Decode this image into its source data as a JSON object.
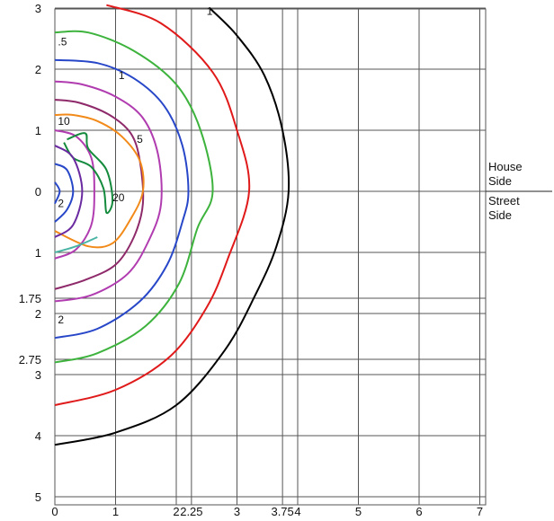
{
  "chart_data": {
    "type": "contour",
    "x_ticks": [
      {
        "v": 0,
        "label": "0"
      },
      {
        "v": 1,
        "label": "1"
      },
      {
        "v": 2,
        "label": "2"
      },
      {
        "v": 2.25,
        "label": "2.25"
      },
      {
        "v": 3,
        "label": "3"
      },
      {
        "v": 3.75,
        "label": "3.75"
      },
      {
        "v": 4,
        "label": "4"
      },
      {
        "v": 5,
        "label": "5"
      },
      {
        "v": 6,
        "label": "6"
      },
      {
        "v": 7,
        "label": "7"
      }
    ],
    "y_ticks": [
      {
        "v": 3,
        "label": "3"
      },
      {
        "v": 2,
        "label": "2"
      },
      {
        "v": 1,
        "label": "1"
      },
      {
        "v": 0,
        "label": "0"
      },
      {
        "v": -1,
        "label": "1"
      },
      {
        "v": -1.75,
        "label": "1.75"
      },
      {
        "v": -2,
        "label": "2"
      },
      {
        "v": -2.75,
        "label": "2.75"
      },
      {
        "v": -3,
        "label": "3"
      },
      {
        "v": -4,
        "label": "4"
      },
      {
        "v": -5,
        "label": "5"
      }
    ],
    "xlim": [
      0,
      7
    ],
    "ylim": [
      -5,
      3
    ],
    "grid": true,
    "side_labels": {
      "upper": [
        "House",
        "Side"
      ],
      "lower": [
        "Street",
        "Side"
      ]
    },
    "contours": [
      {
        "level": "black",
        "color": "#000000",
        "points": [
          [
            0,
            -4.15
          ],
          [
            1,
            -3.95
          ],
          [
            2,
            -3.5
          ],
          [
            2.8,
            -2.6
          ],
          [
            3.3,
            -1.7
          ],
          [
            3.65,
            -0.9
          ],
          [
            3.85,
            0
          ],
          [
            3.75,
            1
          ],
          [
            3.45,
            1.9
          ],
          [
            3.0,
            2.55
          ],
          [
            2.55,
            3
          ]
        ]
      },
      {
        "level": "red",
        "color": "#e01a1a",
        "points": [
          [
            0,
            -3.5
          ],
          [
            1,
            -3.25
          ],
          [
            1.9,
            -2.7
          ],
          [
            2.5,
            -1.9
          ],
          [
            2.85,
            -1.1
          ],
          [
            3.2,
            0
          ],
          [
            3.0,
            1
          ],
          [
            2.6,
            1.95
          ],
          [
            1.75,
            2.75
          ],
          [
            0.85,
            3.05
          ]
        ]
      },
      {
        "level": "green",
        "color": "#3db33d",
        "points": [
          [
            0,
            -2.8
          ],
          [
            0.7,
            -2.65
          ],
          [
            1.5,
            -2.2
          ],
          [
            2.05,
            -1.5
          ],
          [
            2.35,
            -0.6
          ],
          [
            2.6,
            0
          ],
          [
            2.4,
            1
          ],
          [
            2.0,
            1.75
          ],
          [
            1.3,
            2.3
          ],
          [
            0.55,
            2.6
          ],
          [
            0,
            2.6
          ]
        ]
      },
      {
        "level": "1",
        "color": "#2747c8",
        "points": [
          [
            0,
            -2.4
          ],
          [
            0.7,
            -2.25
          ],
          [
            1.4,
            -1.8
          ],
          [
            1.85,
            -1.2
          ],
          [
            2.1,
            -0.5
          ],
          [
            2.2,
            0
          ],
          [
            2.1,
            0.75
          ],
          [
            1.8,
            1.4
          ],
          [
            1.3,
            1.85
          ],
          [
            0.7,
            2.1
          ],
          [
            0,
            2.15
          ]
        ]
      },
      {
        "level": "magenta",
        "color": "#b03cb0",
        "points": [
          [
            0,
            -1.8
          ],
          [
            0.6,
            -1.7
          ],
          [
            1.2,
            -1.35
          ],
          [
            1.55,
            -0.8
          ],
          [
            1.75,
            -0.2
          ],
          [
            1.7,
            0.6
          ],
          [
            1.45,
            1.2
          ],
          [
            1.0,
            1.55
          ],
          [
            0.45,
            1.75
          ],
          [
            0,
            1.8
          ]
        ]
      },
      {
        "level": "5",
        "color": "#8e2a6a",
        "points": [
          [
            0,
            -1.6
          ],
          [
            0.5,
            -1.45
          ],
          [
            1.0,
            -1.2
          ],
          [
            1.3,
            -0.75
          ],
          [
            1.45,
            -0.2
          ],
          [
            1.4,
            0.5
          ],
          [
            1.25,
            0.95
          ],
          [
            0.9,
            1.25
          ],
          [
            0.4,
            1.45
          ],
          [
            0,
            1.5
          ]
        ]
      },
      {
        "level": "10",
        "color": "#f28a1a",
        "points": [
          [
            0,
            -0.65
          ],
          [
            0.55,
            -0.9
          ],
          [
            0.95,
            -0.85
          ],
          [
            1.25,
            -0.45
          ],
          [
            1.45,
            0
          ],
          [
            1.4,
            0.5
          ],
          [
            1.1,
            0.9
          ],
          [
            0.7,
            1.15
          ],
          [
            0.3,
            1.25
          ],
          [
            0,
            1.25
          ]
        ]
      },
      {
        "level": "inner-magenta",
        "color": "#b03cb0",
        "points": [
          [
            0,
            -1.1
          ],
          [
            0.35,
            -0.95
          ],
          [
            0.6,
            -0.55
          ],
          [
            0.65,
            0
          ],
          [
            0.6,
            0.55
          ],
          [
            0.35,
            0.9
          ],
          [
            0,
            1.0
          ]
        ]
      },
      {
        "level": "teal",
        "color": "#4ab4a4",
        "points": [
          [
            0,
            -1.0
          ],
          [
            0.35,
            -0.9
          ],
          [
            0.7,
            -0.75
          ]
        ]
      },
      {
        "level": "20",
        "color": "#138a3c",
        "points": [
          [
            0.2,
            0.85
          ],
          [
            0.5,
            0.95
          ],
          [
            0.55,
            0.7
          ],
          [
            0.85,
            0.35
          ],
          [
            0.95,
            -0.15
          ],
          [
            0.85,
            -0.35
          ],
          [
            0.8,
            0.05
          ],
          [
            0.6,
            0.4
          ],
          [
            0.3,
            0.55
          ],
          [
            0.15,
            0.8
          ]
        ]
      },
      {
        "level": "inner-purple",
        "color": "#6a2aa0",
        "points": [
          [
            0,
            -0.75
          ],
          [
            0.3,
            -0.55
          ],
          [
            0.45,
            0
          ],
          [
            0.3,
            0.55
          ],
          [
            0,
            0.75
          ]
        ]
      },
      {
        "level": "inner-blue",
        "color": "#2747c8",
        "points": [
          [
            0,
            -0.5
          ],
          [
            0.2,
            -0.3
          ],
          [
            0.3,
            0
          ],
          [
            0.2,
            0.35
          ],
          [
            0,
            0.45
          ]
        ]
      },
      {
        "level": "2",
        "color": "#2747c8",
        "points": [
          [
            0,
            -0.2
          ],
          [
            0.08,
            0
          ],
          [
            0,
            0.15
          ]
        ]
      }
    ],
    "contour_labels": [
      {
        "text": "1",
        "x": 2.5,
        "y": 2.95
      },
      {
        "text": ".5",
        "x": 0.05,
        "y": 2.45
      },
      {
        "text": "1",
        "x": 1.05,
        "y": 1.9
      },
      {
        "text": "10",
        "x": 0.05,
        "y": 1.15
      },
      {
        "text": "5",
        "x": 1.35,
        "y": 0.85
      },
      {
        "text": "20",
        "x": 0.95,
        "y": -0.1
      },
      {
        "text": "2",
        "x": 0.05,
        "y": -0.2
      },
      {
        "text": "2",
        "x": 0.05,
        "y": -2.1
      }
    ]
  }
}
